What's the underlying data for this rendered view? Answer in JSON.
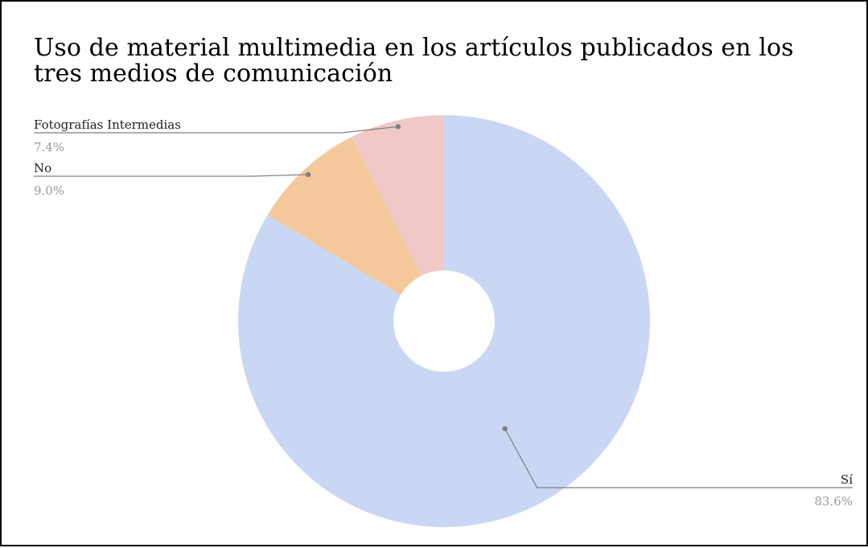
{
  "chart_data": {
    "type": "pie",
    "title": "Uso de material multimedia en los artículos publicados en los tres medios de comunicación",
    "slices": [
      {
        "label": "Sí",
        "value": 83.6,
        "percent_label": "83.6%",
        "color": "#c9d7f4"
      },
      {
        "label": "No",
        "value": 9.0,
        "percent_label": "9.0%",
        "color": "#f5c89b"
      },
      {
        "label": "Fotografías Intermedias",
        "value": 7.4,
        "percent_label": "7.4%",
        "color": "#f0c8c8"
      }
    ],
    "donut": true,
    "leader_line_color": "#7f7f7f",
    "legend": "none"
  }
}
